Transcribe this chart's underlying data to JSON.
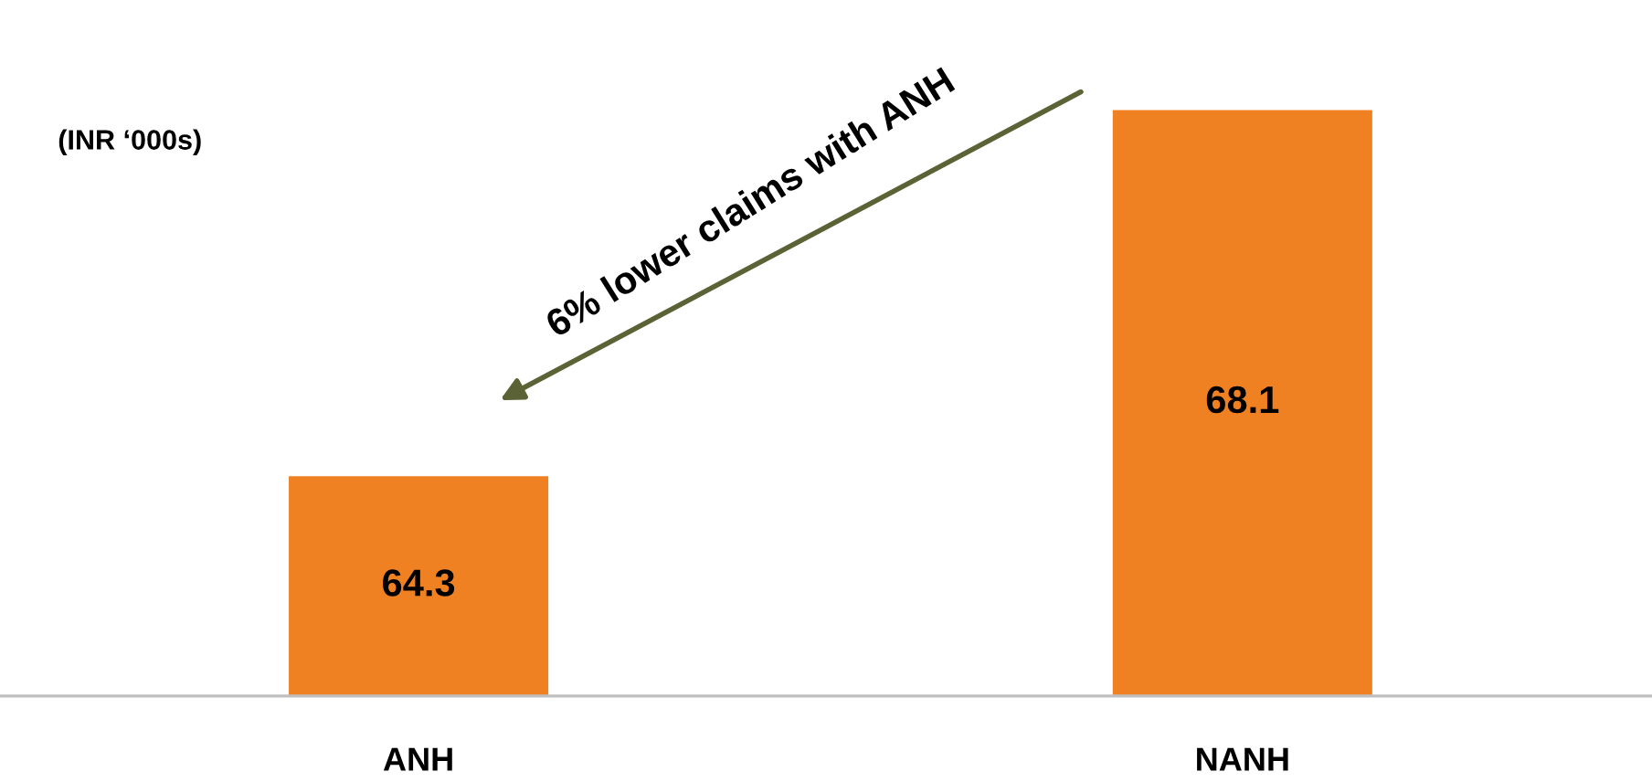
{
  "chart_data": {
    "type": "bar",
    "categories": [
      "ANH",
      "NANH"
    ],
    "values": [
      64.3,
      68.1
    ],
    "color": "#f08123",
    "data_labels": true,
    "tick_labels": "x",
    "grid": false,
    "annotations": [
      "(INR ‘000s)",
      "6% lower claims with ANH"
    ]
  }
}
